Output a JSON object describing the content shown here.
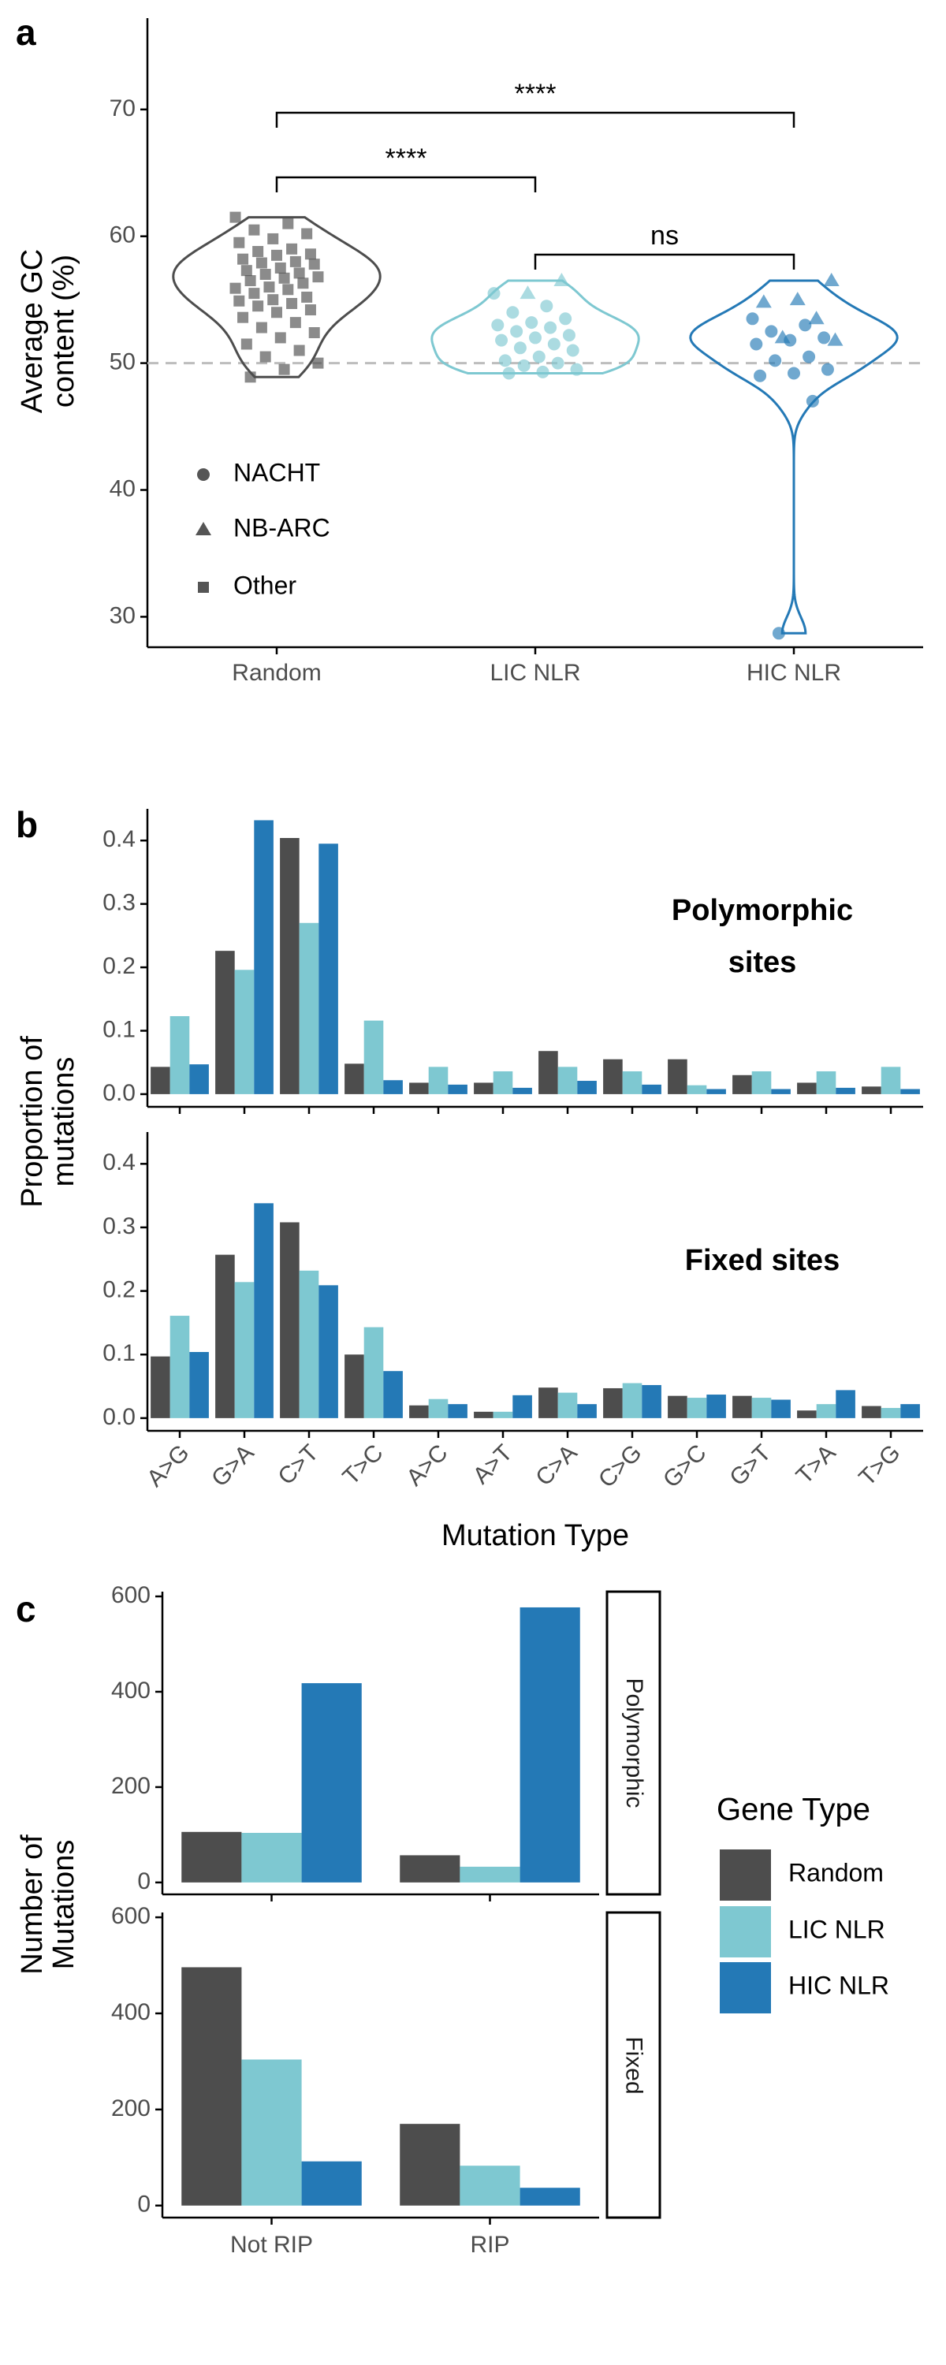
{
  "chart_data": [
    {
      "type": "violin",
      "panel_label": "a",
      "ylabel": "Average GC content (%)",
      "categories": [
        "Random",
        "LIC NLR",
        "HIC NLR"
      ],
      "colors": [
        "#4d4d4d",
        "#7ec8d1",
        "#2479b6"
      ],
      "ylim": [
        27.6,
        77.2
      ],
      "yticks": [
        30,
        40,
        50,
        60,
        70
      ],
      "reference_line": 50,
      "legend": [
        {
          "name": "NACHT",
          "marker": "circle"
        },
        {
          "name": "NB-ARC",
          "marker": "triangle"
        },
        {
          "name": "Other",
          "marker": "square"
        }
      ],
      "groups": [
        {
          "series": [
            {
              "marker": "square",
              "values": [
                61.5,
                61,
                60.5,
                60.2,
                59.8,
                59.5,
                59,
                58.8,
                58.6,
                58.5,
                58.2,
                58,
                57.9,
                57.8,
                57.5,
                57.3,
                57.1,
                57,
                56.8,
                56.7,
                56.5,
                56.3,
                56,
                55.9,
                55.8,
                55.5,
                55.2,
                55,
                54.9,
                54.7,
                54.5,
                54.2,
                54,
                53.6,
                53.2,
                52.8,
                52.4,
                52,
                51.5,
                51,
                50.5,
                50,
                49.5,
                48.9
              ]
            }
          ]
        },
        {
          "series": [
            {
              "marker": "circle",
              "values": [
                55.5,
                54.5,
                54,
                53.5,
                53.2,
                53,
                52.8,
                52.5,
                52.2,
                52,
                51.8,
                51.5,
                51.2,
                51,
                50.5,
                50.2,
                50,
                49.8,
                49.5,
                49.3,
                49.2
              ]
            },
            {
              "marker": "triangle",
              "values": [
                56.5,
                55.5
              ]
            }
          ]
        },
        {
          "series": [
            {
              "marker": "circle",
              "values": [
                53.5,
                53,
                52.5,
                52,
                51.8,
                51.5,
                50.5,
                50.2,
                49.5,
                49.2,
                49,
                47,
                28.7
              ]
            },
            {
              "marker": "triangle",
              "values": [
                56.5,
                55,
                54.8,
                53.5,
                52,
                51.8
              ]
            }
          ]
        }
      ],
      "comparisons": [
        {
          "groups": [
            0,
            2
          ],
          "label": "****"
        },
        {
          "groups": [
            0,
            1
          ],
          "label": "****"
        },
        {
          "groups": [
            1,
            2
          ],
          "label": "ns"
        }
      ]
    },
    {
      "type": "bar",
      "panel_label": "b",
      "ylabel": "Proportion of mutations",
      "xlabel": "Mutation Type",
      "categories": [
        "A>G",
        "G>A",
        "C>T",
        "T>C",
        "A>C",
        "A>T",
        "C>A",
        "C>G",
        "G>C",
        "G>T",
        "T>A",
        "T>G"
      ],
      "highlighted": [
        1,
        2
      ],
      "highlight_color": "#ff0000",
      "colors": [
        "#4d4d4d",
        "#7ec8d1",
        "#2479b6"
      ],
      "ylim": [
        -0.02,
        0.45
      ],
      "yticks": [
        {
          "value": 0,
          "label": "0.0"
        },
        0.1,
        0.2,
        0.3,
        0.4
      ],
      "facets": [
        {
          "label": "Polymorphic sites",
          "series": [
            {
              "values": [
                0.043,
                0.226,
                0.404,
                0.048,
                0.018,
                0.018,
                0.068,
                0.055,
                0.055,
                0.03,
                0.018,
                0.012
              ]
            },
            {
              "values": [
                0.123,
                0.196,
                0.27,
                0.116,
                0.043,
                0.036,
                0.043,
                0.036,
                0.014,
                0.036,
                0.036,
                0.043
              ]
            },
            {
              "values": [
                0.047,
                0.432,
                0.395,
                0.022,
                0.015,
                0.01,
                0.021,
                0.015,
                0.008,
                0.008,
                0.01,
                0.008
              ]
            }
          ]
        },
        {
          "label": "Fixed sites",
          "series": [
            {
              "values": [
                0.097,
                0.257,
                0.308,
                0.1,
                0.02,
                0.01,
                0.048,
                0.047,
                0.035,
                0.035,
                0.012,
                0.019
              ]
            },
            {
              "values": [
                0.161,
                0.214,
                0.232,
                0.143,
                0.03,
                0.01,
                0.04,
                0.055,
                0.032,
                0.032,
                0.022,
                0.016
              ]
            },
            {
              "values": [
                0.104,
                0.338,
                0.209,
                0.074,
                0.022,
                0.036,
                0.022,
                0.052,
                0.037,
                0.029,
                0.044,
                0.022
              ]
            }
          ]
        }
      ]
    },
    {
      "type": "bar",
      "panel_label": "c",
      "ylabel": "Number of Mutations",
      "categories": [
        "Not RIP",
        "RIP"
      ],
      "colors": [
        "#4d4d4d",
        "#7ec8d1",
        "#2479b6"
      ],
      "legend_title": "Gene Type",
      "legend_names": [
        "Random",
        "LIC NLR",
        "HIC NLR"
      ],
      "ylim": [
        -25,
        610
      ],
      "yticks": [
        0,
        200,
        400,
        600
      ],
      "facets": [
        {
          "label": "Polymorphic",
          "series": [
            {
              "values": [
                106,
                57
              ]
            },
            {
              "values": [
                104,
                33
              ]
            },
            {
              "values": [
                418,
                577
              ]
            }
          ]
        },
        {
          "label": "Fixed",
          "series": [
            {
              "values": [
                496,
                170
              ]
            },
            {
              "values": [
                304,
                83
              ]
            },
            {
              "values": [
                92,
                37
              ]
            }
          ]
        }
      ]
    }
  ]
}
